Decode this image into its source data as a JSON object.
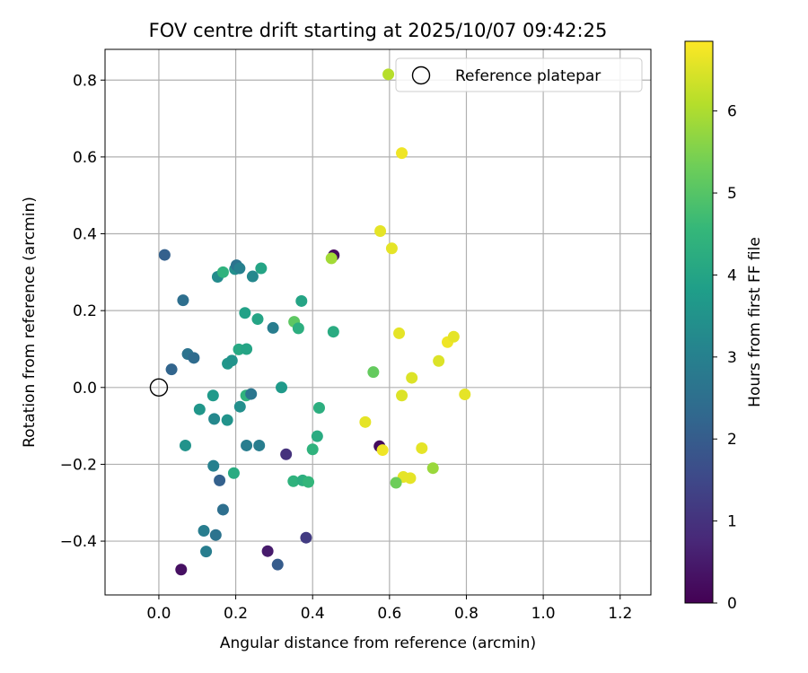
{
  "chart_data": {
    "type": "scatter",
    "title": "FOV centre drift starting at 2025/10/07 09:42:25",
    "xlabel": "Angular distance from reference (arcmin)",
    "ylabel": "Rotation from reference (arcmin)",
    "xlim": [
      -0.14,
      1.28
    ],
    "ylim": [
      -0.54,
      0.88
    ],
    "xticks": [
      "0.0",
      "0.2",
      "0.4",
      "0.6",
      "0.8",
      "1.0",
      "1.2"
    ],
    "xtick_values": [
      0.0,
      0.2,
      0.4,
      0.6,
      0.8,
      1.0,
      1.2
    ],
    "yticks": [
      "−0.4",
      "−0.2",
      "0.0",
      "0.2",
      "0.4",
      "0.6",
      "0.8"
    ],
    "ytick_values": [
      -0.4,
      -0.2,
      0.0,
      0.2,
      0.4,
      0.6,
      0.8
    ],
    "grid": true,
    "legend": {
      "label": "Reference platepar",
      "placement": "top-right"
    },
    "reference_point": {
      "x": 0.0,
      "y": 0.0
    },
    "colorbar": {
      "label": "Hours from first FF file",
      "min": 0,
      "max": 6.85,
      "ticks": [
        "0",
        "1",
        "2",
        "3",
        "4",
        "5",
        "6"
      ],
      "tick_values": [
        0,
        1,
        2,
        3,
        4,
        5,
        6
      ],
      "colormap": "viridis",
      "colors": [
        "#440154",
        "#482878",
        "#3e4989",
        "#31688e",
        "#26828e",
        "#1f9e89",
        "#35b779",
        "#6ece58",
        "#b5de2b",
        "#fde725"
      ]
    },
    "points": [
      {
        "x": 0.015,
        "y": 0.345,
        "h": 2.1
      },
      {
        "x": 0.063,
        "y": 0.227,
        "h": 2.5
      },
      {
        "x": 0.033,
        "y": 0.047,
        "h": 2.2
      },
      {
        "x": 0.075,
        "y": 0.087,
        "h": 2.6
      },
      {
        "x": 0.091,
        "y": 0.077,
        "h": 2.4
      },
      {
        "x": 0.106,
        "y": -0.057,
        "h": 3.6
      },
      {
        "x": 0.069,
        "y": -0.151,
        "h": 3.5
      },
      {
        "x": 0.141,
        "y": -0.021,
        "h": 3.7
      },
      {
        "x": 0.144,
        "y": -0.082,
        "h": 3.2
      },
      {
        "x": 0.142,
        "y": -0.204,
        "h": 3.0
      },
      {
        "x": 0.158,
        "y": -0.242,
        "h": 2.1
      },
      {
        "x": 0.167,
        "y": -0.318,
        "h": 2.5
      },
      {
        "x": 0.117,
        "y": -0.373,
        "h": 2.9
      },
      {
        "x": 0.148,
        "y": -0.384,
        "h": 2.6
      },
      {
        "x": 0.123,
        "y": -0.427,
        "h": 2.9
      },
      {
        "x": 0.058,
        "y": -0.474,
        "h": 0.3
      },
      {
        "x": 0.153,
        "y": 0.288,
        "h": 3.3
      },
      {
        "x": 0.167,
        "y": 0.3,
        "h": 4.4
      },
      {
        "x": 0.198,
        "y": 0.308,
        "h": 3.4
      },
      {
        "x": 0.202,
        "y": 0.318,
        "h": 2.6
      },
      {
        "x": 0.21,
        "y": 0.31,
        "h": 3.0
      },
      {
        "x": 0.244,
        "y": 0.289,
        "h": 3.2
      },
      {
        "x": 0.266,
        "y": 0.31,
        "h": 4.0
      },
      {
        "x": 0.224,
        "y": 0.194,
        "h": 3.9
      },
      {
        "x": 0.257,
        "y": 0.178,
        "h": 4.0
      },
      {
        "x": 0.297,
        "y": 0.155,
        "h": 2.9
      },
      {
        "x": 0.208,
        "y": 0.099,
        "h": 4.1
      },
      {
        "x": 0.228,
        "y": 0.1,
        "h": 4.0
      },
      {
        "x": 0.179,
        "y": 0.062,
        "h": 3.6
      },
      {
        "x": 0.19,
        "y": 0.07,
        "h": 3.5
      },
      {
        "x": 0.227,
        "y": -0.021,
        "h": 4.4
      },
      {
        "x": 0.24,
        "y": -0.017,
        "h": 2.7
      },
      {
        "x": 0.178,
        "y": -0.085,
        "h": 3.5
      },
      {
        "x": 0.211,
        "y": -0.05,
        "h": 3.4
      },
      {
        "x": 0.228,
        "y": -0.151,
        "h": 2.9
      },
      {
        "x": 0.261,
        "y": -0.151,
        "h": 2.9
      },
      {
        "x": 0.195,
        "y": -0.223,
        "h": 4.2
      },
      {
        "x": 0.319,
        "y": 0.0,
        "h": 3.7
      },
      {
        "x": 0.331,
        "y": -0.174,
        "h": 1.0
      },
      {
        "x": 0.283,
        "y": -0.426,
        "h": 0.5
      },
      {
        "x": 0.309,
        "y": -0.461,
        "h": 2.0
      },
      {
        "x": 0.383,
        "y": -0.391,
        "h": 1.2
      },
      {
        "x": 0.352,
        "y": 0.171,
        "h": 5.1
      },
      {
        "x": 0.363,
        "y": 0.154,
        "h": 4.3
      },
      {
        "x": 0.371,
        "y": 0.225,
        "h": 4.0
      },
      {
        "x": 0.454,
        "y": 0.145,
        "h": 4.2
      },
      {
        "x": 0.417,
        "y": -0.053,
        "h": 4.3
      },
      {
        "x": 0.412,
        "y": -0.127,
        "h": 4.2
      },
      {
        "x": 0.4,
        "y": -0.161,
        "h": 4.4
      },
      {
        "x": 0.35,
        "y": -0.244,
        "h": 4.4
      },
      {
        "x": 0.374,
        "y": -0.242,
        "h": 4.3
      },
      {
        "x": 0.389,
        "y": -0.246,
        "h": 4.5
      },
      {
        "x": 0.455,
        "y": 0.344,
        "h": 0.2
      },
      {
        "x": 0.449,
        "y": 0.336,
        "h": 5.9
      },
      {
        "x": 0.597,
        "y": 0.815,
        "h": 6.1
      },
      {
        "x": 0.632,
        "y": 0.61,
        "h": 6.7
      },
      {
        "x": 0.576,
        "y": 0.407,
        "h": 6.6
      },
      {
        "x": 0.606,
        "y": 0.362,
        "h": 6.6
      },
      {
        "x": 0.625,
        "y": 0.141,
        "h": 6.6
      },
      {
        "x": 0.558,
        "y": 0.04,
        "h": 5.2
      },
      {
        "x": 0.658,
        "y": 0.025,
        "h": 6.5
      },
      {
        "x": 0.632,
        "y": -0.021,
        "h": 6.5
      },
      {
        "x": 0.537,
        "y": -0.09,
        "h": 6.6
      },
      {
        "x": 0.574,
        "y": -0.153,
        "h": 0.2
      },
      {
        "x": 0.582,
        "y": -0.163,
        "h": 6.7
      },
      {
        "x": 0.684,
        "y": -0.158,
        "h": 6.6
      },
      {
        "x": 0.636,
        "y": -0.233,
        "h": 6.6
      },
      {
        "x": 0.654,
        "y": -0.236,
        "h": 6.6
      },
      {
        "x": 0.617,
        "y": -0.248,
        "h": 5.3
      },
      {
        "x": 0.713,
        "y": -0.21,
        "h": 5.8
      },
      {
        "x": 0.728,
        "y": 0.069,
        "h": 6.5
      },
      {
        "x": 0.751,
        "y": 0.118,
        "h": 6.7
      },
      {
        "x": 0.767,
        "y": 0.132,
        "h": 6.6
      },
      {
        "x": 0.796,
        "y": -0.018,
        "h": 6.6
      }
    ]
  }
}
